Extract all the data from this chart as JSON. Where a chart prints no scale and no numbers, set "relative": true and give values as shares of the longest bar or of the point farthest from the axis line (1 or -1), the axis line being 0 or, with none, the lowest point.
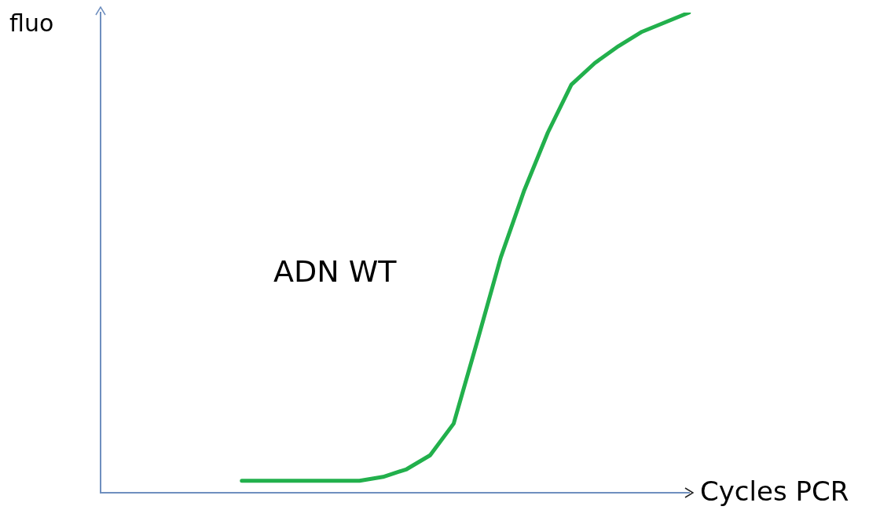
{
  "chart_data": {
    "type": "line",
    "relative": true,
    "xlabel": "Cycles PCR",
    "ylabel": "fluo",
    "annotations": [
      "ADN WT"
    ],
    "marker": "none",
    "grid": false,
    "legend": false,
    "categories": [
      null,
      null,
      null,
      null,
      null,
      null,
      null,
      null,
      null,
      null,
      null,
      null,
      null,
      null,
      null,
      null,
      null,
      null,
      null,
      null,
      null,
      null,
      null,
      null,
      null,
      null
    ],
    "series": [
      {
        "color": "#22b04c",
        "values": [
          null,
          null,
          null,
          null,
          null,
          null,
          0.025,
          0.025,
          0.025,
          0.025,
          0.025,
          0.025,
          0.033,
          0.049,
          0.078,
          0.144,
          0.315,
          0.49,
          0.63,
          0.75,
          0.85,
          0.895,
          0.93,
          0.96,
          0.98,
          1.0
        ]
      }
    ]
  }
}
